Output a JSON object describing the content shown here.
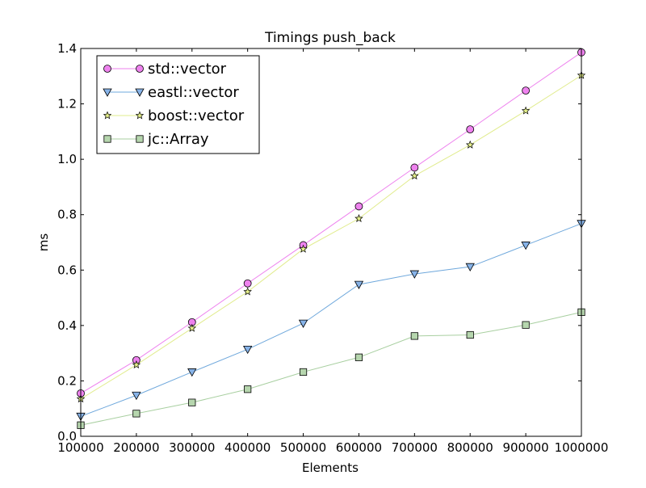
{
  "chart_data": {
    "type": "line",
    "title": "Timings push_back",
    "xlabel": "Elements",
    "ylabel": "ms",
    "xlim": [
      100000,
      1000000
    ],
    "ylim": [
      0.0,
      1.4
    ],
    "x_ticks": [
      100000,
      200000,
      300000,
      400000,
      500000,
      600000,
      700000,
      800000,
      900000,
      1000000
    ],
    "x_tick_labels": [
      "100000",
      "200000",
      "300000",
      "400000",
      "500000",
      "600000",
      "700000",
      "800000",
      "900000",
      "1000000"
    ],
    "y_ticks": [
      0.0,
      0.2,
      0.4,
      0.6,
      0.8,
      1.0,
      1.2,
      1.4
    ],
    "y_tick_labels": [
      "0.0",
      "0.2",
      "0.4",
      "0.6",
      "0.8",
      "1.0",
      "1.2",
      "1.4"
    ],
    "grid": false,
    "legend_position": "top-left",
    "x": [
      100000,
      200000,
      300000,
      400000,
      500000,
      600000,
      700000,
      800000,
      900000,
      1000000
    ],
    "series": [
      {
        "name": "std::vector",
        "marker": "circle",
        "line_color": "#ee82ee",
        "marker_fill": "#ee82ee",
        "values": [
          0.155,
          0.275,
          0.412,
          0.552,
          0.69,
          0.83,
          0.97,
          1.108,
          1.248,
          1.386
        ]
      },
      {
        "name": "eastl::vector",
        "marker": "triangle-down",
        "line_color": "#6fa8dc",
        "marker_fill": "#87b3e8",
        "values": [
          0.072,
          0.148,
          0.232,
          0.314,
          0.408,
          0.548,
          0.586,
          0.612,
          0.69,
          0.768
        ]
      },
      {
        "name": "boost::vector",
        "marker": "star",
        "line_color": "#e1ec8e",
        "marker_fill": "#e5f08a",
        "values": [
          0.135,
          0.258,
          0.39,
          0.522,
          0.676,
          0.786,
          0.94,
          1.052,
          1.175,
          1.303
        ]
      },
      {
        "name": "jc::Array",
        "marker": "square",
        "line_color": "#a8cfa0",
        "marker_fill": "#b6d6ae",
        "values": [
          0.04,
          0.082,
          0.122,
          0.17,
          0.232,
          0.285,
          0.362,
          0.366,
          0.402,
          0.448
        ]
      }
    ]
  }
}
